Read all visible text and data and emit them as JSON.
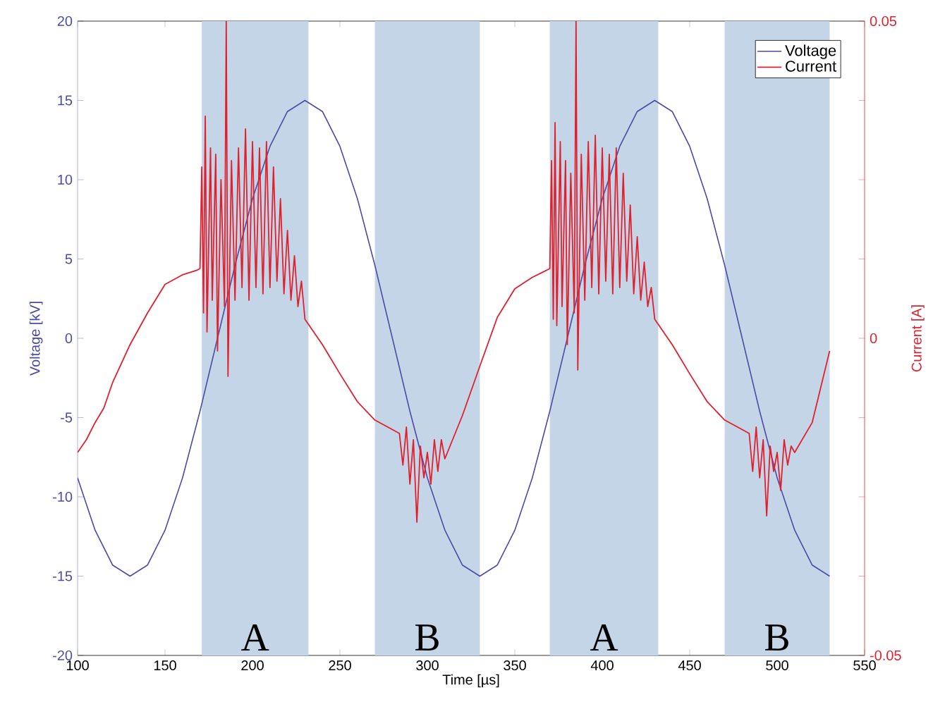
{
  "chart_data": {
    "type": "line",
    "xlabel": "Time [µs]",
    "ylabel": "Voltage [kV]",
    "y2label": "Current [A]",
    "xlim": [
      100,
      550
    ],
    "xticks": [
      100,
      150,
      200,
      250,
      300,
      350,
      400,
      450,
      500,
      550
    ],
    "ylim": [
      -20,
      20
    ],
    "yticks": [
      -20,
      -15,
      -10,
      -5,
      0,
      5,
      10,
      15,
      20
    ],
    "y2lim": [
      -0.05,
      0.05
    ],
    "y2ticks": [
      -0.05,
      {
        "value": -0.0375,
        "label": null
      },
      {
        "value": -0.025,
        "label": null
      },
      {
        "value": -0.0125,
        "label": null
      },
      0,
      {
        "value": 0.0125,
        "label": null
      },
      {
        "value": 0.025,
        "label": null
      },
      {
        "value": 0.0375,
        "label": null
      },
      0.05
    ],
    "legend": "top right",
    "bands": [
      {
        "axis": "x",
        "from": 171,
        "to": 232,
        "label": "A",
        "color": "#c5d5e8"
      },
      {
        "axis": "x",
        "from": 270,
        "to": 330,
        "label": "B",
        "color": "#c5d5e8"
      },
      {
        "axis": "x",
        "from": 370,
        "to": 432,
        "label": "A",
        "color": "#c5d5e8"
      },
      {
        "axis": "x",
        "from": 470,
        "to": 530,
        "label": "B",
        "color": "#c5d5e8"
      }
    ],
    "series": [
      {
        "name": "Voltage",
        "color": "#4b4ba6",
        "x": [
          100,
          110,
          120,
          130,
          140,
          150,
          160,
          170,
          180,
          190,
          200,
          210,
          220,
          230,
          240,
          250,
          260,
          270,
          280,
          290,
          300,
          310,
          320,
          330,
          340,
          350,
          360,
          370,
          380,
          390,
          400,
          410,
          420,
          430,
          440,
          450,
          460,
          470,
          480,
          490,
          500,
          510,
          520,
          530
        ],
        "values": [
          -8.8,
          -12.1,
          -14.3,
          -15,
          -14.3,
          -12.1,
          -8.8,
          -4.6,
          0,
          4.6,
          8.8,
          12.1,
          14.3,
          15,
          14.3,
          12.1,
          8.8,
          4.6,
          0,
          -4.6,
          -8.8,
          -12.1,
          -14.3,
          -15,
          -14.3,
          -12.1,
          -8.8,
          -4.6,
          0,
          4.6,
          8.8,
          12.1,
          14.3,
          15,
          14.3,
          12.1,
          8.8,
          4.6,
          0,
          -4.6,
          -8.8,
          -12.1,
          -14.3,
          -15
        ]
      },
      {
        "name": "Current",
        "color": "#e0202c",
        "axis": "y2",
        "x": [
          100,
          105,
          110,
          115,
          120,
          130,
          140,
          150,
          160,
          168,
          170,
          171,
          172,
          173,
          174,
          176,
          177,
          179,
          180,
          182,
          184,
          185,
          186,
          188,
          190,
          192,
          194,
          196,
          198,
          200,
          202,
          204,
          206,
          208,
          210,
          212,
          214,
          216,
          218,
          220,
          222,
          224,
          226,
          228,
          230,
          240,
          250,
          260,
          270,
          280,
          284,
          286,
          288,
          290,
          292,
          294,
          296,
          298,
          300,
          302,
          304,
          306,
          308,
          310,
          320,
          330,
          340,
          350,
          360,
          368,
          370,
          371,
          372,
          373,
          374,
          376,
          377,
          379,
          380,
          382,
          384,
          385,
          386,
          388,
          390,
          392,
          394,
          396,
          398,
          400,
          402,
          404,
          406,
          408,
          410,
          412,
          414,
          416,
          418,
          420,
          422,
          424,
          426,
          428,
          430,
          440,
          450,
          460,
          470,
          480,
          484,
          486,
          488,
          490,
          492,
          494,
          496,
          498,
          500,
          502,
          504,
          506,
          508,
          510,
          520,
          530
        ],
        "values": [
          -0.018,
          -0.016,
          -0.0133,
          -0.011,
          -0.007,
          -0.001,
          0.004,
          0.0085,
          0.01,
          0.0107,
          0.011,
          0.027,
          0.004,
          0.035,
          0.001,
          0.03,
          0.006,
          0.029,
          -0.002,
          0.025,
          0.005,
          0.05,
          -0.006,
          0.028,
          0.006,
          0.03,
          0.008,
          0.033,
          0.006,
          0.031,
          0.008,
          0.03,
          0.007,
          0.031,
          0.008,
          0.027,
          0.009,
          0.022,
          0.007,
          0.017,
          0.006,
          0.013,
          0.005,
          0.009,
          0.003,
          -0.001,
          -0.0056,
          -0.01,
          -0.0129,
          -0.0144,
          -0.015,
          -0.02,
          -0.014,
          -0.023,
          -0.016,
          -0.029,
          -0.017,
          -0.022,
          -0.018,
          -0.023,
          -0.016,
          -0.021,
          -0.016,
          -0.019,
          -0.0122,
          -0.0044,
          0.0033,
          0.0078,
          0.0096,
          0.0107,
          0.011,
          0.028,
          0.003,
          0.034,
          0.002,
          0.031,
          0.005,
          0.028,
          -0.001,
          0.026,
          0.004,
          0.05,
          -0.005,
          0.029,
          0.006,
          0.031,
          0.008,
          0.032,
          0.007,
          0.03,
          0.009,
          0.029,
          0.007,
          0.03,
          0.008,
          0.026,
          0.009,
          0.021,
          0.007,
          0.016,
          0.006,
          0.012,
          0.005,
          0.008,
          0.003,
          -0.001,
          -0.0056,
          -0.01,
          -0.0129,
          -0.0144,
          -0.015,
          -0.021,
          -0.014,
          -0.022,
          -0.016,
          -0.028,
          -0.017,
          -0.021,
          -0.018,
          -0.024,
          -0.016,
          -0.02,
          -0.017,
          -0.018,
          -0.0133,
          -0.002
        ]
      }
    ]
  }
}
